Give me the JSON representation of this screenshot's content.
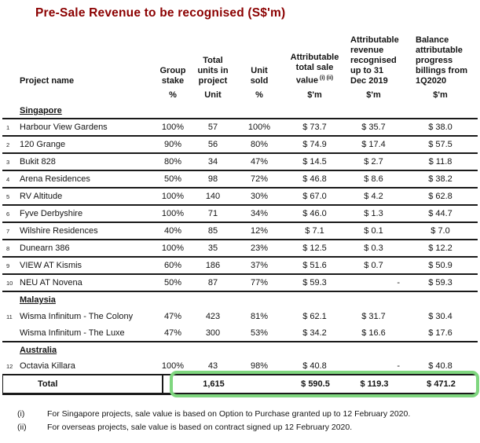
{
  "title": "Pre-Sale Revenue to be recognised (S$'m)",
  "colors": {
    "title": "#8B0000",
    "highlight": "#7fd67f"
  },
  "table": {
    "headers": {
      "project": "Project name",
      "stake": [
        "Group",
        "stake"
      ],
      "units": [
        "Total",
        "units in",
        "project"
      ],
      "sold": [
        "Unit",
        "sold"
      ],
      "value": [
        "Attributable",
        "total sale",
        "value"
      ],
      "value_sup": "(i) (ii)",
      "revenue": [
        "Attributable",
        "revenue",
        "recognised",
        "up to 31",
        "Dec 2019"
      ],
      "balance": [
        "Balance",
        "attributable",
        "progress",
        "billings from",
        "1Q2020"
      ],
      "unit_row": {
        "stake": "%",
        "units": "Unit",
        "sold": "%",
        "value": "$'m",
        "revenue": "$'m",
        "balance": "$'m"
      }
    },
    "sections": [
      {
        "name": "Singapore",
        "rows": [
          {
            "num": "1",
            "name": "Harbour View Gardens",
            "stake": "100%",
            "units": "57",
            "sold": "100%",
            "value": "$ 73.7",
            "revenue": "$ 35.7",
            "balance": "$ 38.0"
          },
          {
            "num": "2",
            "name": "120 Grange",
            "stake": "90%",
            "units": "56",
            "sold": "80%",
            "value": "$ 74.9",
            "revenue": "$ 17.4",
            "balance": "$ 57.5"
          },
          {
            "num": "3",
            "name": "Bukit 828",
            "stake": "80%",
            "units": "34",
            "sold": "47%",
            "value": "$ 14.5",
            "revenue": "$ 2.7",
            "balance": "$ 11.8"
          },
          {
            "num": "4",
            "name": "Arena Residences",
            "stake": "50%",
            "units": "98",
            "sold": "72%",
            "value": "$ 46.8",
            "revenue": "$ 8.6",
            "balance": "$ 38.2"
          },
          {
            "num": "5",
            "name": "RV Altitude",
            "stake": "100%",
            "units": "140",
            "sold": "30%",
            "value": "$ 67.0",
            "revenue": "$ 4.2",
            "balance": "$ 62.8"
          },
          {
            "num": "6",
            "name": "Fyve Derbyshire",
            "stake": "100%",
            "units": "71",
            "sold": "34%",
            "value": "$ 46.0",
            "revenue": "$ 1.3",
            "balance": "$ 44.7"
          },
          {
            "num": "7",
            "name": "Wilshire Residences",
            "stake": "40%",
            "units": "85",
            "sold": "12%",
            "value": "$ 7.1",
            "revenue": "$ 0.1",
            "balance": "$ 7.0"
          },
          {
            "num": "8",
            "name": "Dunearn 386",
            "stake": "100%",
            "units": "35",
            "sold": "23%",
            "value": "$ 12.5",
            "revenue": "$ 0.3",
            "balance": "$ 12.2"
          },
          {
            "num": "9",
            "name": "VIEW AT Kismis",
            "stake": "60%",
            "units": "186",
            "sold": "37%",
            "value": "$ 51.6",
            "revenue": "$ 0.7",
            "balance": "$ 50.9"
          },
          {
            "num": "10",
            "name": "NEU AT Novena",
            "stake": "50%",
            "units": "87",
            "sold": "77%",
            "value": "$ 59.3",
            "revenue": "-",
            "balance": "$ 59.3"
          }
        ]
      },
      {
        "name": "Malaysia",
        "rows": [
          {
            "num": "11",
            "name": "Wisma Infinitum - The Colony",
            "stake": "47%",
            "units": "423",
            "sold": "81%",
            "value": "$ 62.1",
            "revenue": "$ 31.7",
            "balance": "$ 30.4"
          },
          {
            "num": "",
            "name": "Wisma Infinitum - The Luxe",
            "stake": "47%",
            "units": "300",
            "sold": "53%",
            "value": "$ 34.2",
            "revenue": "$ 16.6",
            "balance": "$ 17.6"
          }
        ]
      },
      {
        "name": "Australia",
        "rows": [
          {
            "num": "12",
            "name": "Octavia Killara",
            "stake": "100%",
            "units": "43",
            "sold": "98%",
            "value": "$ 40.8",
            "revenue": "-",
            "balance": "$ 40.8"
          }
        ]
      }
    ],
    "total": {
      "label": "Total",
      "units": "1,615",
      "value": "$ 590.5",
      "revenue": "$ 119.3",
      "balance": "$ 471.2"
    }
  },
  "footnotes": [
    {
      "marker": "(i)",
      "text": "For Singapore projects, sale value is based on Option to Purchase granted up to 12 February 2020."
    },
    {
      "marker": "(ii)",
      "text": "For overseas projects, sale value is based on contract signed up 12 February 2020."
    }
  ]
}
